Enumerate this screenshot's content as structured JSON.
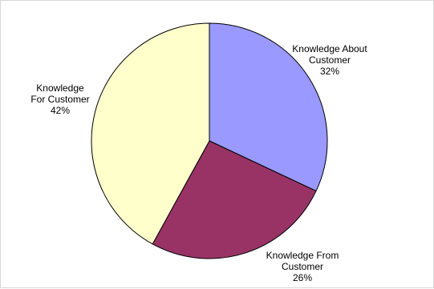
{
  "chart_data": {
    "type": "pie",
    "title": "",
    "slices": [
      {
        "name_lines": [
          "Knowledge About",
          "Customer"
        ],
        "label": "Knowledge About Customer",
        "value": 32,
        "percent_text": "32%",
        "color": "#9999ff"
      },
      {
        "name_lines": [
          "Knowledge From",
          "Customer"
        ],
        "label": "Knowledge From Customer",
        "value": 26,
        "percent_text": "26%",
        "color": "#993366"
      },
      {
        "name_lines": [
          "Knowledge",
          "For Customer"
        ],
        "label": "Knowledge For Customer",
        "value": 42,
        "percent_text": "42%",
        "color": "#ffffcc"
      }
    ],
    "start_angle": "12 o'clock",
    "direction": "clockwise",
    "legend": "none",
    "border_color": "#000000"
  }
}
